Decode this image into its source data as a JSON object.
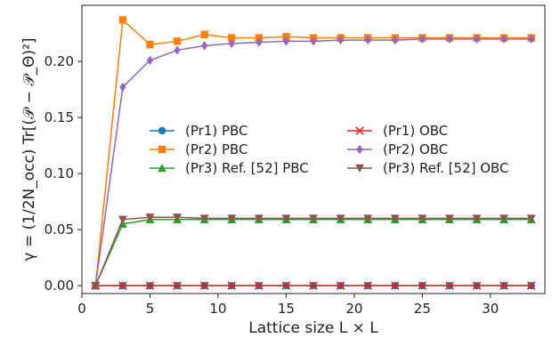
{
  "chart_data": {
    "type": "line",
    "xlabel": "Lattice size L × L",
    "ylabel": "γ = (1/2N_occ) Tr[(𝒫 − 𝒫_Θ)²]",
    "xlim": [
      0,
      34
    ],
    "ylim": [
      -0.007,
      0.25
    ],
    "xticks": [
      0,
      5,
      10,
      15,
      20,
      25,
      30
    ],
    "yticks": [
      0.0,
      0.05,
      0.1,
      0.15,
      0.2
    ],
    "ytick_labels": [
      "0.00",
      "0.05",
      "0.10",
      "0.15",
      "0.20"
    ],
    "grid": false,
    "legend": {
      "location": "center-right",
      "columns": 2
    },
    "x": [
      1,
      3,
      5,
      7,
      9,
      11,
      13,
      15,
      17,
      19,
      21,
      23,
      25,
      27,
      29,
      31,
      33
    ],
    "series": [
      {
        "name": "(Pr1) PBC",
        "color": "#1f77b4",
        "marker": "circle",
        "values": [
          0.0,
          0.0,
          0.0,
          0.0,
          0.0,
          0.0,
          0.0,
          0.0,
          0.0,
          0.0,
          0.0,
          0.0,
          0.0,
          0.0,
          0.0,
          0.0,
          0.0
        ]
      },
      {
        "name": "(Pr2) PBC",
        "color": "#ff7f0e",
        "marker": "square",
        "values": [
          0.0,
          0.237,
          0.215,
          0.218,
          0.224,
          0.221,
          0.221,
          0.222,
          0.221,
          0.221,
          0.221,
          0.221,
          0.221,
          0.221,
          0.221,
          0.221,
          0.221
        ]
      },
      {
        "name": "(Pr3) Ref. [52] PBC",
        "color": "#2ca02c",
        "marker": "triangle-up",
        "values": [
          0.0,
          0.055,
          0.059,
          0.059,
          0.059,
          0.059,
          0.059,
          0.059,
          0.059,
          0.059,
          0.059,
          0.059,
          0.059,
          0.059,
          0.059,
          0.059,
          0.059
        ]
      },
      {
        "name": "(Pr1) OBC",
        "color": "#d62728",
        "marker": "x",
        "values": [
          0.0,
          0.0,
          0.0,
          0.0,
          0.0,
          0.0,
          0.0,
          0.0,
          0.0,
          0.0,
          0.0,
          0.0,
          0.0,
          0.0,
          0.0,
          0.0,
          0.0
        ]
      },
      {
        "name": "(Pr2) OBC",
        "color": "#9467bd",
        "marker": "diamond",
        "values": [
          0.0,
          0.177,
          0.201,
          0.21,
          0.214,
          0.216,
          0.217,
          0.218,
          0.218,
          0.219,
          0.219,
          0.219,
          0.22,
          0.22,
          0.22,
          0.22,
          0.22
        ]
      },
      {
        "name": "(Pr3) Ref. [52] OBC",
        "color": "#8c564b",
        "marker": "triangle-down",
        "values": [
          0.0,
          0.059,
          0.061,
          0.061,
          0.06,
          0.06,
          0.06,
          0.06,
          0.06,
          0.06,
          0.06,
          0.06,
          0.06,
          0.06,
          0.06,
          0.06,
          0.06
        ]
      }
    ]
  }
}
